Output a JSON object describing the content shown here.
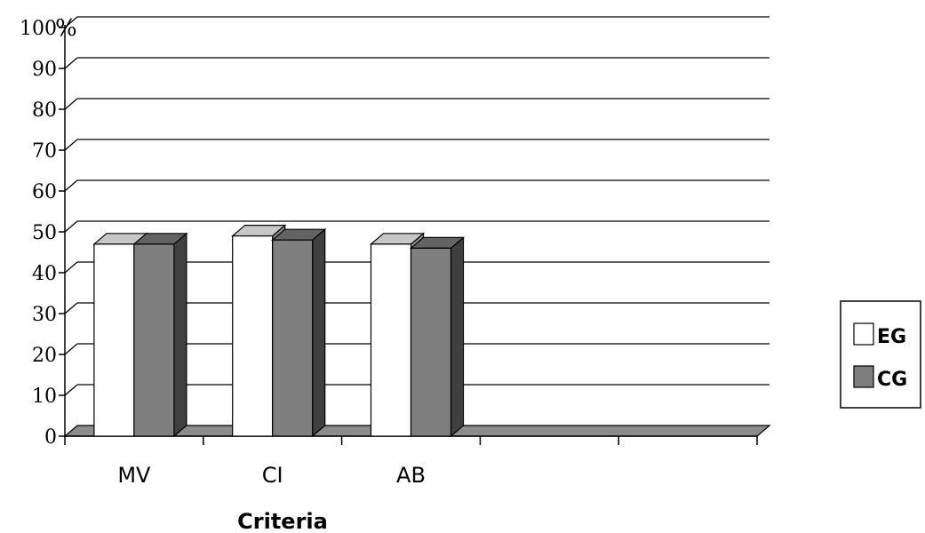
{
  "chart_data": {
    "type": "bar",
    "title": "",
    "xlabel": "Criteria",
    "ylabel": "%",
    "ylim": [
      0,
      100
    ],
    "yticks": [
      0,
      10,
      20,
      30,
      40,
      50,
      60,
      70,
      80,
      90,
      100
    ],
    "categories": [
      "MV",
      "CI",
      "AB"
    ],
    "series": [
      {
        "name": "EG",
        "values": [
          47,
          49,
          47
        ],
        "color": "#ffffff"
      },
      {
        "name": "CG",
        "values": [
          47,
          48,
          46
        ],
        "color": "#7f7f7f"
      }
    ],
    "grid": true,
    "legend_position": "right",
    "style": "3d"
  }
}
